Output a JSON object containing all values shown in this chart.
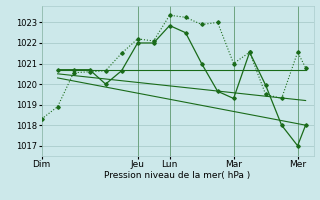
{
  "background_color": "#cce8ea",
  "grid_color": "#aacccc",
  "line_color": "#1a6b1a",
  "xlabel": "Pression niveau de la mer( hPa )",
  "ylim": [
    1016.5,
    1023.8
  ],
  "yticks": [
    1017,
    1018,
    1019,
    1020,
    1021,
    1022,
    1023
  ],
  "day_labels": [
    "Dim",
    "Jeu",
    "Lun",
    "Mar",
    "Mer"
  ],
  "day_positions": [
    0,
    12,
    16,
    24,
    32
  ],
  "xlim": [
    0,
    34
  ],
  "series1_x": [
    0,
    2,
    4,
    6,
    8,
    10,
    12,
    14,
    16,
    18,
    20,
    22,
    24,
    26,
    28,
    30,
    32,
    33
  ],
  "series1_y": [
    1018.3,
    1018.9,
    1020.55,
    1020.6,
    1020.65,
    1021.5,
    1022.2,
    1022.1,
    1023.35,
    1023.25,
    1022.9,
    1023.0,
    1021.0,
    1021.55,
    1019.5,
    1019.3,
    1021.55,
    1020.8
  ],
  "series2_x": [
    2,
    4,
    6,
    8,
    10,
    12,
    14,
    16,
    18,
    20,
    22,
    24,
    26,
    28,
    30,
    32,
    33
  ],
  "series2_y": [
    1020.7,
    1020.7,
    1020.7,
    1020.0,
    1020.65,
    1022.0,
    1022.0,
    1022.85,
    1022.5,
    1021.0,
    1019.65,
    1019.3,
    1021.55,
    1019.95,
    1018.0,
    1017.0,
    1018.0
  ],
  "trend1_x": [
    2,
    33
  ],
  "trend1_y": [
    1020.7,
    1020.7
  ],
  "trend2_x": [
    2,
    33
  ],
  "trend2_y": [
    1020.5,
    1019.2
  ],
  "trend3_x": [
    2,
    33
  ],
  "trend3_y": [
    1020.3,
    1018.0
  ],
  "vline_positions": [
    0,
    12,
    16,
    24,
    32
  ]
}
